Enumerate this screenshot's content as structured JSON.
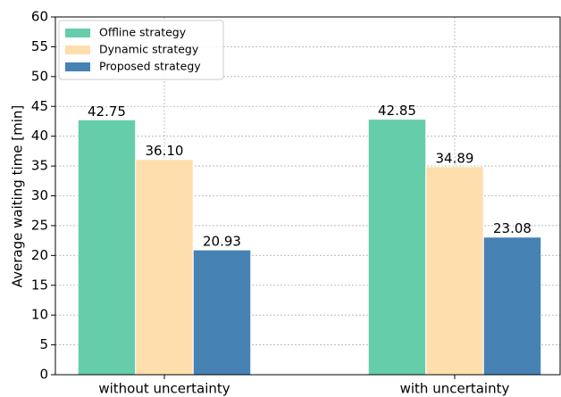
{
  "chart_data": {
    "type": "bar",
    "ylabel": "Average waiting time [min]",
    "categories": [
      "without uncertainty",
      "with uncertainty"
    ],
    "series": [
      {
        "name": "Offline strategy",
        "color": "#66cdaa",
        "values": [
          42.75,
          42.85
        ],
        "value_labels": [
          "42.75",
          "42.85"
        ]
      },
      {
        "name": "Dynamic strategy",
        "color": "#ffdead",
        "values": [
          36.1,
          34.89
        ],
        "value_labels": [
          "36.10",
          "34.89"
        ]
      },
      {
        "name": "Proposed strategy",
        "color": "#4682b4",
        "values": [
          20.93,
          23.08
        ],
        "value_labels": [
          "20.93",
          "23.08"
        ]
      }
    ],
    "ylim": [
      0,
      60
    ],
    "yticks": [
      0,
      5,
      10,
      15,
      20,
      25,
      30,
      35,
      40,
      45,
      50,
      55,
      60
    ],
    "grid": true,
    "legend": "upper left"
  }
}
